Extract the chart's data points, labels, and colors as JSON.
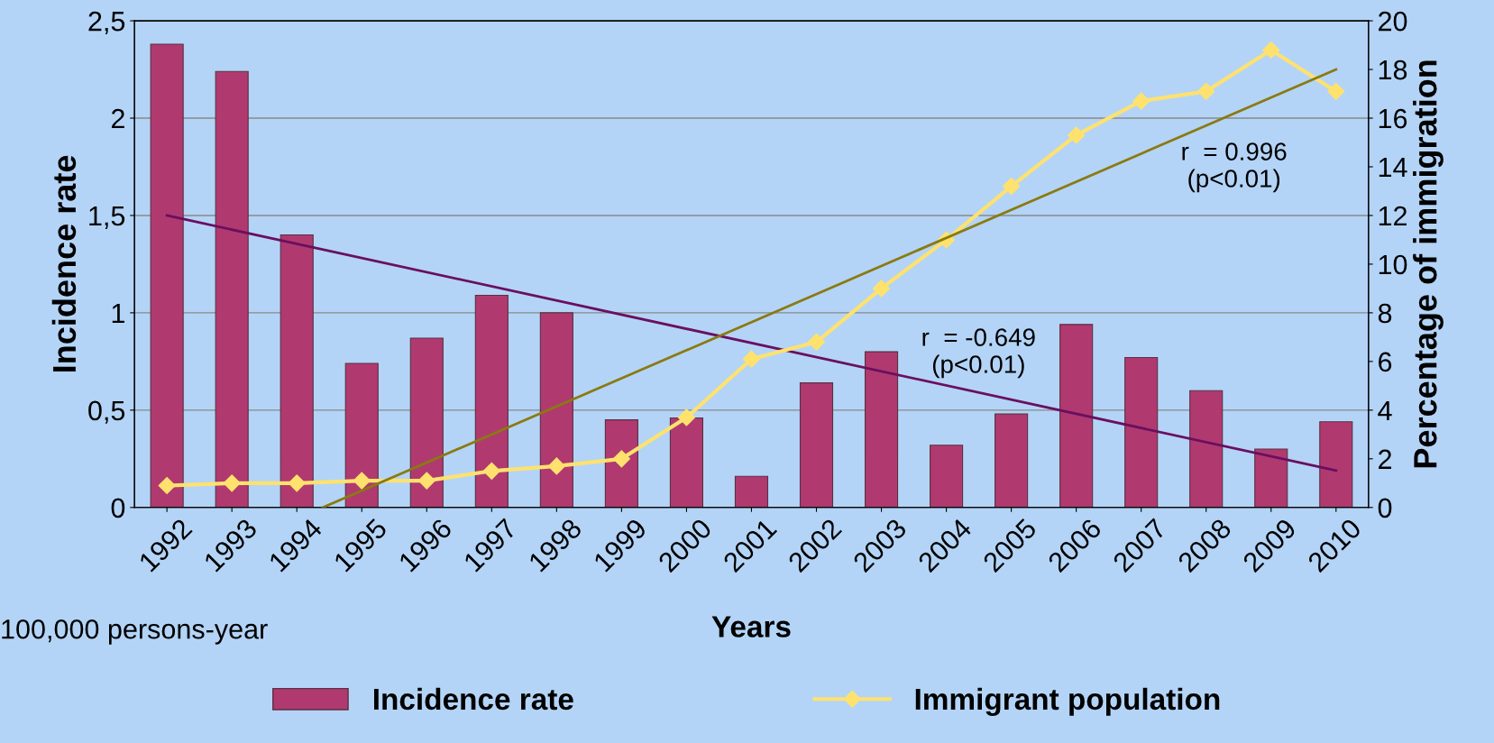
{
  "chart_data": {
    "type": "bar",
    "xlabel": "Years",
    "ylabel": "Incidence rate",
    "y2label": "Percentage of immigration",
    "x": [
      1992,
      1993,
      1994,
      1995,
      1996,
      1997,
      1998,
      1999,
      2000,
      2001,
      2002,
      2003,
      2004,
      2005,
      2006,
      2007,
      2008,
      2009,
      2010
    ],
    "xlim": [
      1991.5,
      2010.5
    ],
    "xticks": [
      1992,
      1993,
      1994,
      1995,
      1996,
      1997,
      1998,
      1999,
      2000,
      2001,
      2002,
      2003,
      2004,
      2005,
      2006,
      2007,
      2008,
      2009,
      2010
    ],
    "ylim": [
      0,
      2.5
    ],
    "yticks": [
      0,
      {
        "value": 0.5,
        "label": "0,5"
      },
      1,
      {
        "value": 1.5,
        "label": "1,5"
      },
      2,
      {
        "value": 2.5,
        "label": "2,5"
      }
    ],
    "y2lim": [
      0,
      20
    ],
    "y2ticks": [
      0,
      2,
      4,
      6,
      8,
      10,
      12,
      14,
      16,
      18,
      20
    ],
    "grid": "y",
    "legend": "bottom",
    "series": [
      {
        "name": "Incidence rate",
        "color": "#b03a70",
        "values": [
          2.38,
          2.24,
          1.4,
          0.74,
          0.87,
          1.09,
          1.0,
          0.45,
          0.46,
          0.16,
          0.64,
          0.8,
          0.32,
          0.48,
          0.94,
          0.77,
          0.6,
          0.3,
          0.44
        ]
      },
      {
        "name": "Immigrant population",
        "type": "line",
        "axis": "y2",
        "color": "#ffe26e",
        "marker": "diamond",
        "values": [
          0.9,
          1.0,
          1.0,
          1.1,
          1.1,
          1.5,
          1.7,
          2.0,
          3.7,
          6.1,
          6.8,
          9.0,
          11.0,
          13.2,
          15.3,
          16.7,
          17.1,
          18.8,
          17.1
        ]
      },
      {
        "type": "line",
        "color": "#6a0f60",
        "x": [
          1992,
          2010
        ],
        "values": [
          1.5,
          0.19
        ]
      },
      {
        "type": "line",
        "axis": "y2",
        "color": "#8a7a10",
        "x": [
          1994.4,
          2010
        ],
        "values": [
          0,
          18.0
        ]
      }
    ],
    "annotations": [
      "r  = 0.996\n(p<0.01)",
      "r  = -0.649\n(p<0.01)",
      "100,000 persons-year"
    ]
  }
}
